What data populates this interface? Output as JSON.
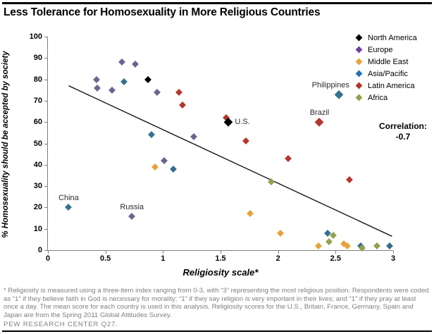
{
  "title": "Less Tolerance for Homosexuality in More Religious Countries",
  "legend": {
    "items": [
      {
        "label": "North America",
        "color": "#000000"
      },
      {
        "label": "Europe",
        "color": "#7141A1"
      },
      {
        "label": "Middle East",
        "color": "#E9A23B"
      },
      {
        "label": "Asia/Pacific",
        "color": "#2273BA"
      },
      {
        "label": "Latin America",
        "color": "#B5372D"
      },
      {
        "label": "Africa",
        "color": "#96A04F"
      }
    ]
  },
  "correlation": {
    "label": "Correlation:",
    "value": "-0.7"
  },
  "chart_data": {
    "type": "scatter",
    "title": "Less Tolerance for Homosexuality in More Religious Countries",
    "xlabel": "Religiosity scale*",
    "ylabel": "% Homosexuality should be accepted by society",
    "xlim": [
      0,
      3
    ],
    "ylim": [
      0,
      100
    ],
    "x_ticks": [
      0,
      0.5,
      1,
      1.5,
      2,
      2.5,
      3
    ],
    "x_tick_labels": [
      "0",
      "0.5",
      "1",
      "1.5",
      "2",
      "2.5",
      "3"
    ],
    "y_ticks": [
      0,
      10,
      20,
      30,
      40,
      50,
      60,
      70,
      80,
      90,
      100
    ],
    "y_tick_labels": [
      "0",
      "10",
      "20",
      "30",
      "40",
      "50",
      "60",
      "70",
      "80",
      "90",
      "100"
    ],
    "grid": false,
    "legend_position": "top-right",
    "series": [
      {
        "name": "North America",
        "color": "#000000",
        "points": [
          {
            "x": 0.87,
            "y": 80
          },
          {
            "x": 1.57,
            "y": 60,
            "label": "U.S.",
            "label_pos": "right",
            "emph": true
          }
        ]
      },
      {
        "name": "Europe",
        "color": "#6F6390",
        "points": [
          {
            "x": 0.64,
            "y": 88
          },
          {
            "x": 0.76,
            "y": 87
          },
          {
            "x": 0.42,
            "y": 80
          },
          {
            "x": 0.43,
            "y": 76
          },
          {
            "x": 0.56,
            "y": 75
          },
          {
            "x": 0.95,
            "y": 74
          },
          {
            "x": 1.27,
            "y": 53
          },
          {
            "x": 1.01,
            "y": 42
          },
          {
            "x": 0.73,
            "y": 16,
            "label": "Russia",
            "label_pos": "above"
          }
        ]
      },
      {
        "name": "Middle East",
        "color": "#E9A23B",
        "points": [
          {
            "x": 0.93,
            "y": 39
          },
          {
            "x": 1.76,
            "y": 17
          },
          {
            "x": 2.02,
            "y": 8
          },
          {
            "x": 2.35,
            "y": 2
          },
          {
            "x": 2.57,
            "y": 3
          },
          {
            "x": 2.6,
            "y": 2
          }
        ]
      },
      {
        "name": "Asia/Pacific",
        "color": "#36708F",
        "points": [
          {
            "x": 0.18,
            "y": 20,
            "label": "China",
            "label_pos": "above"
          },
          {
            "x": 0.66,
            "y": 79
          },
          {
            "x": 0.9,
            "y": 54
          },
          {
            "x": 1.09,
            "y": 38
          },
          {
            "x": 2.53,
            "y": 73,
            "label": "Philippines",
            "label_pos": "above-left",
            "emph": true
          },
          {
            "x": 2.43,
            "y": 8
          },
          {
            "x": 2.72,
            "y": 2
          },
          {
            "x": 2.97,
            "y": 2
          }
        ]
      },
      {
        "name": "Latin America",
        "color": "#B5372D",
        "points": [
          {
            "x": 1.14,
            "y": 74
          },
          {
            "x": 1.17,
            "y": 68
          },
          {
            "x": 1.55,
            "y": 62
          },
          {
            "x": 1.72,
            "y": 51
          },
          {
            "x": 2.09,
            "y": 43
          },
          {
            "x": 2.36,
            "y": 60,
            "label": "Brazil",
            "label_pos": "above",
            "emph": true
          },
          {
            "x": 2.62,
            "y": 33
          }
        ]
      },
      {
        "name": "Africa",
        "color": "#96A04F",
        "points": [
          {
            "x": 1.94,
            "y": 32
          },
          {
            "x": 2.48,
            "y": 7
          },
          {
            "x": 2.44,
            "y": 4
          },
          {
            "x": 2.73,
            "y": 1
          },
          {
            "x": 2.86,
            "y": 2
          }
        ]
      }
    ],
    "trendline": {
      "x1": 0.18,
      "y1": 77,
      "x2": 2.99,
      "y2": 6.5,
      "color": "#1a1a1a"
    }
  },
  "footnote": "* Religiosity is measured using a three-item index ranging from 0-3, with “3” representing the most religious position. Respondents were coded as “1” if they believe faith in God is necessary for morality; “1” if they say religion is very important in their lives; and “1” if they pray at least once a day. The mean score for each country is used in this analysis. Religiosity scores for the U.S., Britain, France, Germany, Spain and Japan are from the Spring 2011 Global Attitudes Survey.",
  "source": "PEW RESEARCH CENTER Q27."
}
